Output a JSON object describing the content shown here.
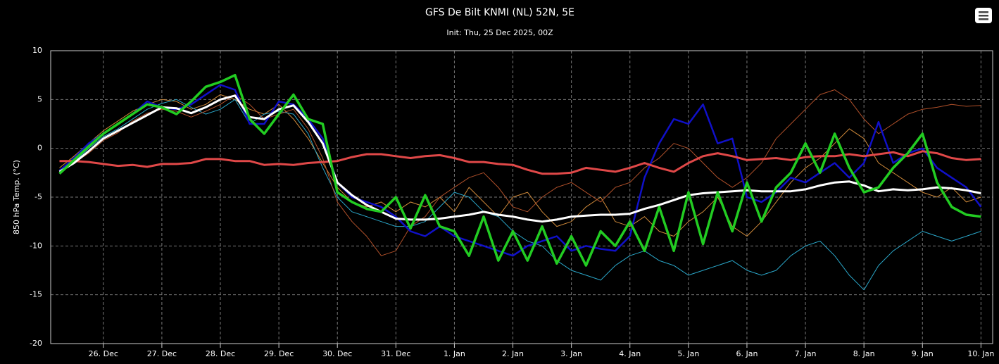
{
  "chart_data": {
    "type": "line",
    "title": "GFS De Bilt KNMI (NL) 52N, 5E",
    "subtitle": "Init: Thu, 25 Dec 2025, 00Z",
    "y_label": "850 hPa Temp. (°C)",
    "grid": true,
    "x": [
      0.25,
      0.5,
      0.75,
      1,
      1.25,
      1.5,
      1.75,
      2,
      2.25,
      2.5,
      2.75,
      3,
      3.25,
      3.5,
      3.75,
      4,
      4.25,
      4.5,
      4.75,
      5,
      5.25,
      5.5,
      5.75,
      6,
      6.25,
      6.5,
      6.75,
      7,
      7.25,
      7.5,
      7.75,
      8,
      8.25,
      8.5,
      8.75,
      9,
      9.25,
      9.5,
      9.75,
      10,
      10.25,
      10.5,
      10.75,
      11,
      11.25,
      11.5,
      11.75,
      12,
      12.25,
      12.5,
      12.75,
      13,
      13.25,
      13.5,
      13.75,
      14,
      14.25,
      14.5,
      14.75,
      15,
      15.25,
      15.5,
      15.75,
      16
    ],
    "xlim": [
      0.1,
      16.2
    ],
    "xticks": [
      {
        "value": 1,
        "label": "26. Dec"
      },
      {
        "value": 2,
        "label": "27. Dec"
      },
      {
        "value": 3,
        "label": "28. Dec"
      },
      {
        "value": 4,
        "label": "29. Dec"
      },
      {
        "value": 5,
        "label": "30. Dec"
      },
      {
        "value": 6,
        "label": "31. Dec"
      },
      {
        "value": 7,
        "label": "1. Jan"
      },
      {
        "value": 8,
        "label": "2. Jan"
      },
      {
        "value": 9,
        "label": "3. Jan"
      },
      {
        "value": 10,
        "label": "4. Jan"
      },
      {
        "value": 11,
        "label": "5. Jan"
      },
      {
        "value": 12,
        "label": "6. Jan"
      },
      {
        "value": 13,
        "label": "7. Jan"
      },
      {
        "value": 14,
        "label": "8. Jan"
      },
      {
        "value": 15,
        "label": "9. Jan"
      },
      {
        "value": 16,
        "label": "10. Jan"
      }
    ],
    "ylim": [
      -20,
      10
    ],
    "yticks": [
      -20,
      -15,
      -10,
      -5,
      0,
      5,
      10
    ],
    "series": [
      {
        "color": "#d08a3a",
        "values": [
          -2.0,
          -0.8,
          0.5,
          1.8,
          2.8,
          3.8,
          4.5,
          5.0,
          4.8,
          4.0,
          4.5,
          5.5,
          5.0,
          4.0,
          3.5,
          4.5,
          3.0,
          1.0,
          -1.5,
          -4.0,
          -5.5,
          -6.0,
          -5.5,
          -6.5,
          -5.5,
          -6.0,
          -5.0,
          -6.5,
          -4.0,
          -5.5,
          -7.0,
          -5.0,
          -4.5,
          -6.5,
          -8.0,
          -7.5,
          -6.0,
          -5.0,
          -7.5,
          -8.0,
          -7.0,
          -8.5,
          -9.0,
          -7.5,
          -6.5,
          -5.0,
          -8.0,
          -9.0,
          -7.5,
          -5.5,
          -3.5,
          -2.0,
          -1.0,
          0.5,
          2.0,
          1.0,
          -1.5,
          -2.5,
          -3.5,
          -4.5,
          -5.0,
          -4.0,
          -5.5,
          -5.0
        ]
      },
      {
        "color": "#2aa6c8",
        "values": [
          -2.2,
          -1.4,
          0.0,
          1.2,
          2.0,
          3.0,
          4.0,
          4.6,
          5.0,
          4.2,
          3.5,
          4.0,
          5.0,
          2.5,
          3.5,
          3.8,
          3.5,
          1.5,
          -2.0,
          -5.0,
          -6.5,
          -7.0,
          -7.5,
          -8.0,
          -8.0,
          -7.5,
          -6.0,
          -4.5,
          -5.0,
          -6.5,
          -7.0,
          -8.5,
          -9.5,
          -10.0,
          -11.5,
          -12.5,
          -13.0,
          -13.5,
          -12.0,
          -11.0,
          -10.5,
          -11.5,
          -12.0,
          -13.0,
          -12.5,
          -12.0,
          -11.5,
          -12.5,
          -13.0,
          -12.5,
          -11.0,
          -10.0,
          -9.5,
          -11.0,
          -13.0,
          -14.5,
          -12.0,
          -10.5,
          -9.5,
          -8.5,
          -9.0,
          -9.5,
          -9.0,
          -8.5
        ]
      },
      {
        "color": "#b0502a",
        "values": [
          -2.5,
          -1.5,
          -0.5,
          0.8,
          1.6,
          2.8,
          3.6,
          4.0,
          3.8,
          3.2,
          3.8,
          4.5,
          5.5,
          4.5,
          3.0,
          3.5,
          4.0,
          2.0,
          -1.0,
          -5.5,
          -7.5,
          -9.0,
          -11.0,
          -10.5,
          -8.0,
          -7.0,
          -5.0,
          -4.0,
          -3.0,
          -2.5,
          -4.0,
          -6.0,
          -6.5,
          -5.0,
          -4.0,
          -3.5,
          -4.5,
          -5.5,
          -4.0,
          -3.5,
          -2.0,
          -1.0,
          0.5,
          0.0,
          -1.5,
          -3.0,
          -4.0,
          -3.0,
          -1.5,
          1.0,
          2.5,
          4.0,
          5.5,
          6.0,
          5.0,
          3.0,
          1.5,
          2.5,
          3.5,
          4.0,
          4.2,
          4.5,
          4.3,
          4.4
        ]
      },
      {
        "color": "#1010c8",
        "values": [
          -2.3,
          -1.0,
          0.5,
          1.5,
          2.5,
          3.5,
          4.8,
          4.2,
          4.0,
          4.5,
          5.5,
          6.5,
          6.0,
          2.5,
          2.5,
          4.8,
          4.5,
          3.0,
          1.0,
          -3.5,
          -5.0,
          -5.5,
          -6.0,
          -7.0,
          -8.5,
          -9.0,
          -8.0,
          -9.0,
          -9.5,
          -10.0,
          -10.5,
          -11.0,
          -10.0,
          -9.5,
          -9.0,
          -10.5,
          -10.0,
          -10.3,
          -10.5,
          -9.0,
          -3.0,
          0.5,
          3.0,
          2.5,
          4.5,
          0.5,
          1.0,
          -5.0,
          -5.5,
          -4.5,
          -3.0,
          -3.5,
          -2.5,
          -1.5,
          -3.0,
          -1.5,
          2.7,
          -1.5,
          -0.5,
          0.0,
          -2.0,
          -3.0,
          -4.0,
          -6.0
        ]
      },
      {
        "color": "#e04848",
        "values": [
          -1.3,
          -1.3,
          -1.4,
          -1.6,
          -1.8,
          -1.7,
          -1.9,
          -1.6,
          -1.6,
          -1.5,
          -1.1,
          -1.1,
          -1.3,
          -1.3,
          -1.7,
          -1.6,
          -1.7,
          -1.5,
          -1.4,
          -1.3,
          -0.9,
          -0.6,
          -0.6,
          -0.8,
          -1.0,
          -0.8,
          -0.7,
          -1.0,
          -1.4,
          -1.4,
          -1.6,
          -1.7,
          -2.2,
          -2.6,
          -2.6,
          -2.5,
          -2.0,
          -2.2,
          -2.4,
          -2.0,
          -1.5,
          -2.0,
          -2.4,
          -1.5,
          -0.8,
          -0.5,
          -0.8,
          -1.2,
          -1.1,
          -1.0,
          -1.2,
          -0.9,
          -0.8,
          -0.8,
          -0.6,
          -0.8,
          -0.6,
          -0.4,
          -0.8,
          -0.3,
          -0.5,
          -1.0,
          -1.2,
          -1.1
        ]
      },
      {
        "color": "#ffffff",
        "values": [
          -2.4,
          -1.5,
          -0.3,
          1.0,
          1.8,
          2.6,
          3.4,
          4.2,
          4.1,
          3.6,
          4.2,
          5.0,
          5.4,
          3.2,
          3.0,
          4.0,
          4.4,
          2.7,
          0.5,
          -3.5,
          -4.8,
          -5.8,
          -6.5,
          -7.2,
          -7.3,
          -7.3,
          -7.2,
          -7.0,
          -6.8,
          -6.5,
          -6.8,
          -7.0,
          -7.3,
          -7.5,
          -7.3,
          -7.0,
          -6.9,
          -6.8,
          -6.8,
          -6.7,
          -6.2,
          -5.8,
          -5.3,
          -4.8,
          -4.6,
          -4.5,
          -4.4,
          -4.3,
          -4.4,
          -4.4,
          -4.4,
          -4.2,
          -3.8,
          -3.5,
          -3.4,
          -3.8,
          -4.4,
          -4.2,
          -4.3,
          -4.2,
          -4.0,
          -4.1,
          -4.3,
          -4.6
        ]
      },
      {
        "color": "#22cc22",
        "values": [
          -2.6,
          -1.2,
          0.2,
          1.5,
          2.5,
          3.5,
          4.5,
          4.2,
          3.5,
          4.8,
          6.3,
          6.8,
          7.5,
          3.0,
          1.5,
          3.5,
          5.5,
          3.0,
          2.5,
          -4.5,
          -5.5,
          -6.2,
          -6.5,
          -5.0,
          -8.2,
          -4.8,
          -8.0,
          -8.5,
          -11.0,
          -7.0,
          -11.5,
          -8.5,
          -11.5,
          -8.0,
          -11.8,
          -9.0,
          -12.0,
          -8.5,
          -10.0,
          -7.5,
          -10.5,
          -6.0,
          -10.5,
          -4.5,
          -9.8,
          -4.5,
          -8.5,
          -3.5,
          -7.5,
          -4.0,
          -2.5,
          0.5,
          -2.5,
          1.5,
          -2.0,
          -4.5,
          -4.0,
          -2.0,
          -0.5,
          1.5,
          -3.5,
          -6.0,
          -6.8,
          -7.0
        ]
      }
    ]
  }
}
